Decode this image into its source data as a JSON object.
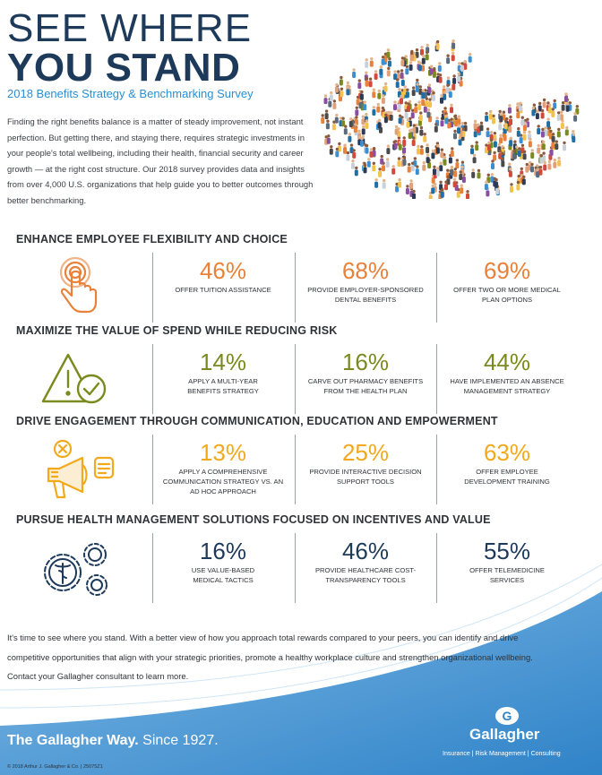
{
  "header": {
    "title_line1": "SEE WHERE",
    "title_line2": "YOU STAND",
    "subtitle": "2018 Benefits Strategy & Benchmarking Survey",
    "intro": "Finding the right benefits balance is a matter of steady improvement, not instant perfection. But getting there, and staying there, requires strategic investments in your people's total wellbeing, including their health, financial security and career growth — at the right cost structure. Our 2018 survey provides data and insights from over 4,000 U.S. organizations that help guide you to better outcomes through better benchmarking."
  },
  "colors": {
    "navy": "#1d3a5a",
    "blue": "#2b8fd1",
    "orange": "#e8813a",
    "green": "#7a8a1f",
    "yellow": "#f2a91c",
    "swoosh": "#3b8fd0"
  },
  "sections": [
    {
      "title": "ENHANCE EMPLOYEE FLEXIBILITY AND CHOICE",
      "icon": "tap-hand-icon",
      "stats": [
        {
          "value": "46%",
          "label": "OFFER TUITION ASSISTANCE"
        },
        {
          "value": "68%",
          "label": "PROVIDE EMPLOYER-SPONSORED DENTAL BENEFITS"
        },
        {
          "value": "69%",
          "label": "OFFER TWO OR MORE MEDICAL PLAN OPTIONS"
        }
      ]
    },
    {
      "title": "MAXIMIZE THE VALUE OF SPEND WHILE REDUCING RISK",
      "icon": "warning-check-icon",
      "stats": [
        {
          "value": "14%",
          "label": "APPLY A MULTI-YEAR BENEFITS STRATEGY"
        },
        {
          "value": "16%",
          "label": "CARVE OUT PHARMACY BENEFITS FROM THE HEALTH PLAN"
        },
        {
          "value": "44%",
          "label": "HAVE IMPLEMENTED AN ABSENCE MANAGEMENT STRATEGY"
        }
      ]
    },
    {
      "title": "DRIVE ENGAGEMENT THROUGH COMMUNICATION, EDUCATION AND EMPOWERMENT",
      "icon": "megaphone-icon",
      "stats": [
        {
          "value": "13%",
          "label": "APPLY A COMPREHENSIVE COMMUNICATION STRATEGY VS. AN AD HOC APPROACH"
        },
        {
          "value": "25%",
          "label": "PROVIDE INTERACTIVE DECISION SUPPORT TOOLS"
        },
        {
          "value": "63%",
          "label": "OFFER EMPLOYEE DEVELOPMENT TRAINING"
        }
      ]
    },
    {
      "title": "PURSUE HEALTH MANAGEMENT SOLUTIONS FOCUSED ON INCENTIVES AND VALUE",
      "icon": "medical-gears-icon",
      "stats": [
        {
          "value": "16%",
          "label": "USE VALUE-BASED MEDICAL TACTICS"
        },
        {
          "value": "46%",
          "label": "PROVIDE HEALTHCARE COST-TRANSPARENCY TOOLS"
        },
        {
          "value": "55%",
          "label": "OFFER TELEMEDICINE SERVICES"
        }
      ]
    }
  ],
  "footer": {
    "text": "It's time to see where you stand. With a better view of how you approach total rewards compared to your peers, you can identify and drive competitive opportunities that align with your strategic priorities, promote a healthy workplace culture and strengthen organizational wellbeing. Contact your Gallagher consultant to learn more.",
    "tagline_bold": "The Gallagher Way.",
    "tagline_rest": " Since 1927.",
    "copyright": "© 2018 Arthur J. Gallagher & Co. | 25075Z1",
    "logo_name": "Gallagher",
    "logo_sub": "Insurance  |  Risk Management  |  Consulting"
  }
}
